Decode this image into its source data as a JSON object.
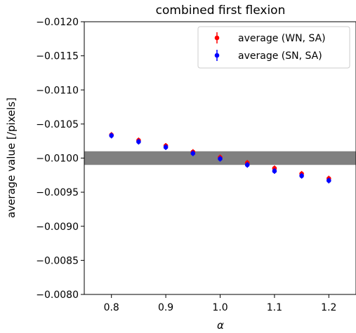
{
  "chart_data": {
    "type": "scatter",
    "title": "combined first flexion",
    "xlabel": "α",
    "ylabel": "average value [/pixels]",
    "xlim": [
      0.75,
      1.25
    ],
    "ylim": [
      -0.008,
      -0.012
    ],
    "y_axis_inverted": true,
    "xticks": [
      0.8,
      0.9,
      1.0,
      1.1,
      1.2
    ],
    "xtick_labels": [
      "0.8",
      "0.9",
      "1.0",
      "1.1",
      "1.2"
    ],
    "yticks": [
      -0.012,
      -0.0115,
      -0.011,
      -0.0105,
      -0.01,
      -0.0095,
      -0.009,
      -0.0085,
      -0.008
    ],
    "ytick_labels": [
      "−0.0120",
      "−0.0115",
      "−0.0110",
      "−0.0105",
      "−0.0100",
      "−0.0095",
      "−0.0090",
      "−0.0085",
      "−0.0080"
    ],
    "grid": false,
    "legend_position": "top-right",
    "band": {
      "ymin": -0.0101,
      "ymax": -0.0099,
      "color": "#808080"
    },
    "series": [
      {
        "name": "average (WN, SA)",
        "color": "#ff0000",
        "x": [
          0.8,
          0.85,
          0.9,
          0.95,
          1.0,
          1.05,
          1.1,
          1.15,
          1.2
        ],
        "y": [
          -0.01034,
          -0.01026,
          -0.01018,
          -0.01009,
          -0.01001,
          -0.00993,
          -0.00985,
          -0.00977,
          -0.0097
        ]
      },
      {
        "name": "average (SN, SA)",
        "color": "#0000ff",
        "x": [
          0.8,
          0.85,
          0.9,
          0.95,
          1.0,
          1.05,
          1.1,
          1.15,
          1.2
        ],
        "y": [
          -0.01033,
          -0.01024,
          -0.01016,
          -0.01007,
          -0.00999,
          -0.0099,
          -0.00981,
          -0.00974,
          -0.00967
        ]
      }
    ]
  }
}
